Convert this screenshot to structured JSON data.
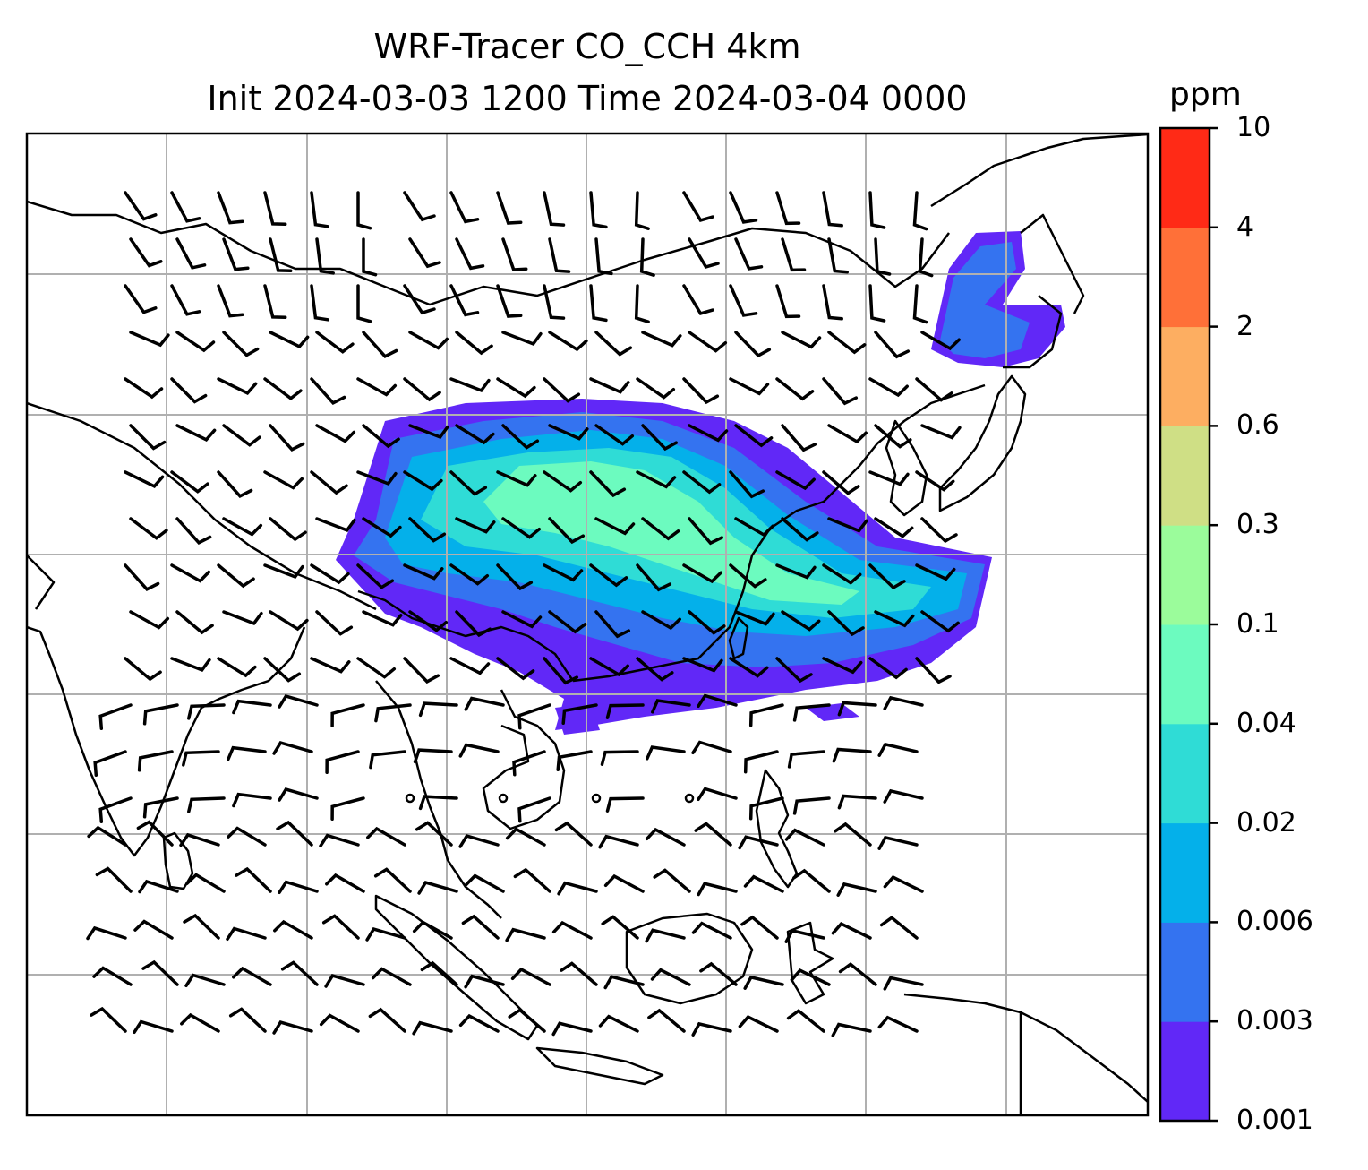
{
  "title": {
    "line1": "WRF-Tracer CO_CCH 4km",
    "line2": "Init 2024-03-03 1200 Time 2024-03-04 0000"
  },
  "colorbar": {
    "unit": "ppm",
    "levels": [
      "0.001",
      "0.003",
      "0.006",
      "0.02",
      "0.04",
      "0.1",
      "0.3",
      "0.6",
      "2",
      "4",
      "10"
    ],
    "colors": [
      "#6128f7",
      "#3473f0",
      "#04b0ea",
      "#2fdcd6",
      "#6cfbbf",
      "#9bfc9b",
      "#cfdf85",
      "#fdae61",
      "#ff7038",
      "#ff2a16"
    ]
  },
  "map": {
    "projection": "lat-lon",
    "gridlines": true,
    "features": [
      "coastlines",
      "country borders"
    ],
    "overlay": "wind barbs",
    "field": "CO tracer concentration"
  }
}
